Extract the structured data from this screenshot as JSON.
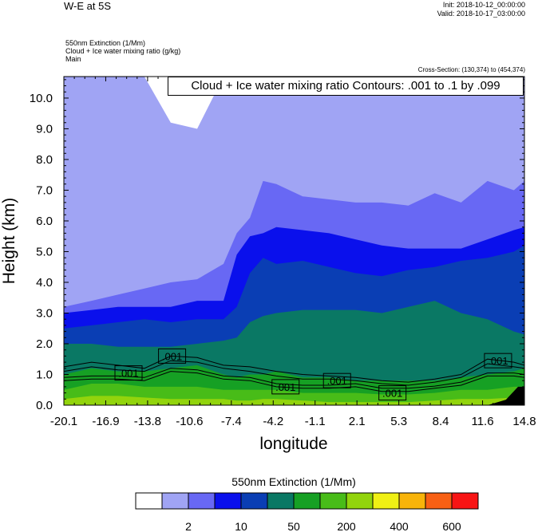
{
  "header": {
    "title": "W-E at 5S",
    "init": "Init: 2018-10-12_00:00:00",
    "valid": "Valid: 2018-10-17_03:00:00",
    "field_line1": "550nm Extinction   (1/Mm)",
    "field_line2": "Cloud + Ice water mixing ratio   (g/kg)",
    "field_line3": "Main",
    "cross_section": "Cross-Section: (130,374) to (454,374)"
  },
  "contour_info": "Cloud + Ice water mixing ratio Contours: .001 to .1 by .099",
  "colors": {
    "levels": [
      "#ffffff",
      "#a0a4f4",
      "#6868f4",
      "#0a10ec",
      "#0a3eb4",
      "#0a7864",
      "#16a024",
      "#48bc18",
      "#92d40c",
      "#f0f014",
      "#f8b40a",
      "#f86014",
      "#f81414"
    ],
    "black": "#000000"
  },
  "chart_data": {
    "type": "heatmap",
    "title": "W-E at 5S",
    "xlabel": "longitude",
    "ylabel": "Height (km)",
    "x_ticks": [
      "-20.1",
      "-16.9",
      "-13.8",
      "-10.6",
      "-7.4",
      "-4.2",
      "-1.1",
      "2.1",
      "5.3",
      "8.4",
      "11.6",
      "14.8"
    ],
    "y_ticks": [
      "0.0",
      "1.0",
      "2.0",
      "3.0",
      "4.0",
      "5.0",
      "6.0",
      "7.0",
      "8.0",
      "9.0",
      "10.0"
    ],
    "xlim": [
      -20.1,
      14.8
    ],
    "ylim": [
      0,
      10.7
    ],
    "colorbar": {
      "title": "550nm Extinction  (1/Mm)",
      "tick_labels": [
        "2",
        "10",
        "50",
        "200",
        "400",
        "600"
      ],
      "label_after_box": [
        1,
        3,
        5,
        7,
        9,
        11
      ]
    },
    "contour_labels": [
      {
        "text": ".001",
        "lon": -15.2,
        "height": 1.05
      },
      {
        "text": ".001",
        "lon": -11.9,
        "height": 1.6
      },
      {
        "text": ".001",
        "lon": -3.3,
        "height": 0.6
      },
      {
        "text": ".001",
        "lon": 0.6,
        "height": 0.8
      },
      {
        "text": ".001",
        "lon": 4.8,
        "height": 0.4
      },
      {
        "text": ".001",
        "lon": 12.8,
        "height": 1.45
      }
    ],
    "extinction_boundaries_km": {
      "x": [
        -20.1,
        -18,
        -16,
        -14,
        -12,
        -10,
        -8,
        -7,
        -6,
        -5,
        -4,
        -2,
        0,
        2,
        4,
        6,
        8,
        10,
        12,
        14,
        14.8
      ],
      "above_2": [
        10.7,
        10.7,
        10.7,
        10.7,
        9.2,
        9.0,
        10.7,
        10.7,
        10.7,
        10.7,
        10.7,
        10.7,
        10.7,
        10.7,
        10.7,
        10.7,
        10.7,
        10.7,
        10.7,
        10.7,
        10.7
      ],
      "above_10": [
        3.2,
        3.4,
        3.6,
        3.8,
        4.0,
        4.1,
        4.6,
        5.6,
        6.1,
        7.3,
        7.2,
        6.8,
        6.7,
        6.6,
        6.6,
        6.5,
        6.9,
        6.6,
        7.3,
        7.0,
        7.3
      ],
      "above_20": [
        3.0,
        3.1,
        3.2,
        3.2,
        3.2,
        3.4,
        3.4,
        4.9,
        5.5,
        5.6,
        5.8,
        5.7,
        5.6,
        5.4,
        5.2,
        5.1,
        5.1,
        5.1,
        5.4,
        5.7,
        5.8
      ],
      "above_50": [
        2.5,
        2.6,
        2.7,
        2.8,
        2.7,
        2.8,
        2.8,
        3.2,
        4.3,
        4.8,
        4.6,
        4.7,
        4.5,
        4.3,
        4.2,
        4.4,
        4.5,
        4.7,
        4.8,
        5.0,
        5.2
      ],
      "above_100": [
        2.0,
        2.0,
        1.9,
        1.9,
        1.9,
        2.0,
        2.1,
        2.2,
        2.7,
        2.9,
        3.0,
        3.1,
        3.1,
        3.1,
        3.0,
        3.2,
        3.4,
        3.0,
        2.8,
        2.4,
        2.3
      ],
      "above_200": [
        1.0,
        1.2,
        1.1,
        1.1,
        1.2,
        1.3,
        1.0,
        0.9,
        1.0,
        1.0,
        1.1,
        0.9,
        0.9,
        0.8,
        0.8,
        0.8,
        0.8,
        0.9,
        1.0,
        1.1,
        1.2
      ],
      "above_300": [
        0.5,
        0.7,
        0.7,
        0.6,
        0.6,
        0.6,
        0.5,
        0.5,
        0.5,
        0.5,
        0.5,
        0.4,
        0.4,
        0.4,
        0.35,
        0.35,
        0.4,
        0.5,
        0.5,
        0.6,
        0.6
      ],
      "above_400": [
        0.2,
        0.3,
        0.3,
        0.25,
        0.2,
        0.2,
        0.2,
        0.15,
        0.15,
        0.2,
        0.2,
        0.15,
        0.1,
        0.1,
        0.1,
        0.1,
        0.15,
        0.2,
        0.2,
        0.25,
        0.3
      ]
    },
    "cloud_contours_km": {
      "x": [
        -20.1,
        -18,
        -16,
        -14,
        -12,
        -10,
        -8,
        -6,
        -4,
        -2,
        0,
        2,
        4,
        6,
        8,
        10,
        12,
        14,
        14.8
      ],
      "top_outer": [
        1.25,
        1.4,
        1.3,
        1.2,
        1.6,
        1.55,
        1.3,
        1.25,
        1.1,
        1.0,
        0.95,
        0.9,
        0.8,
        0.75,
        0.85,
        1.0,
        1.5,
        1.4,
        1.3
      ],
      "bottom_outer": [
        0.8,
        0.85,
        0.85,
        0.8,
        1.1,
        1.05,
        0.85,
        0.8,
        0.6,
        0.55,
        0.55,
        0.6,
        0.45,
        0.45,
        0.55,
        0.65,
        0.95,
        0.95,
        0.9
      ],
      "top_inner": [
        1.1,
        1.25,
        1.15,
        1.1,
        1.45,
        1.4,
        1.2,
        1.1,
        0.95,
        0.85,
        0.85,
        0.8,
        0.7,
        0.65,
        0.75,
        0.9,
        1.35,
        1.25,
        1.2
      ],
      "bottom_inner": [
        0.9,
        0.95,
        0.95,
        0.9,
        1.2,
        1.15,
        0.95,
        0.9,
        0.7,
        0.65,
        0.65,
        0.7,
        0.55,
        0.55,
        0.62,
        0.75,
        1.05,
        1.05,
        1.0
      ]
    },
    "masked_terrain": {
      "lon_start": 12.0,
      "lon_end": 14.8,
      "max_height": 0.6
    }
  }
}
